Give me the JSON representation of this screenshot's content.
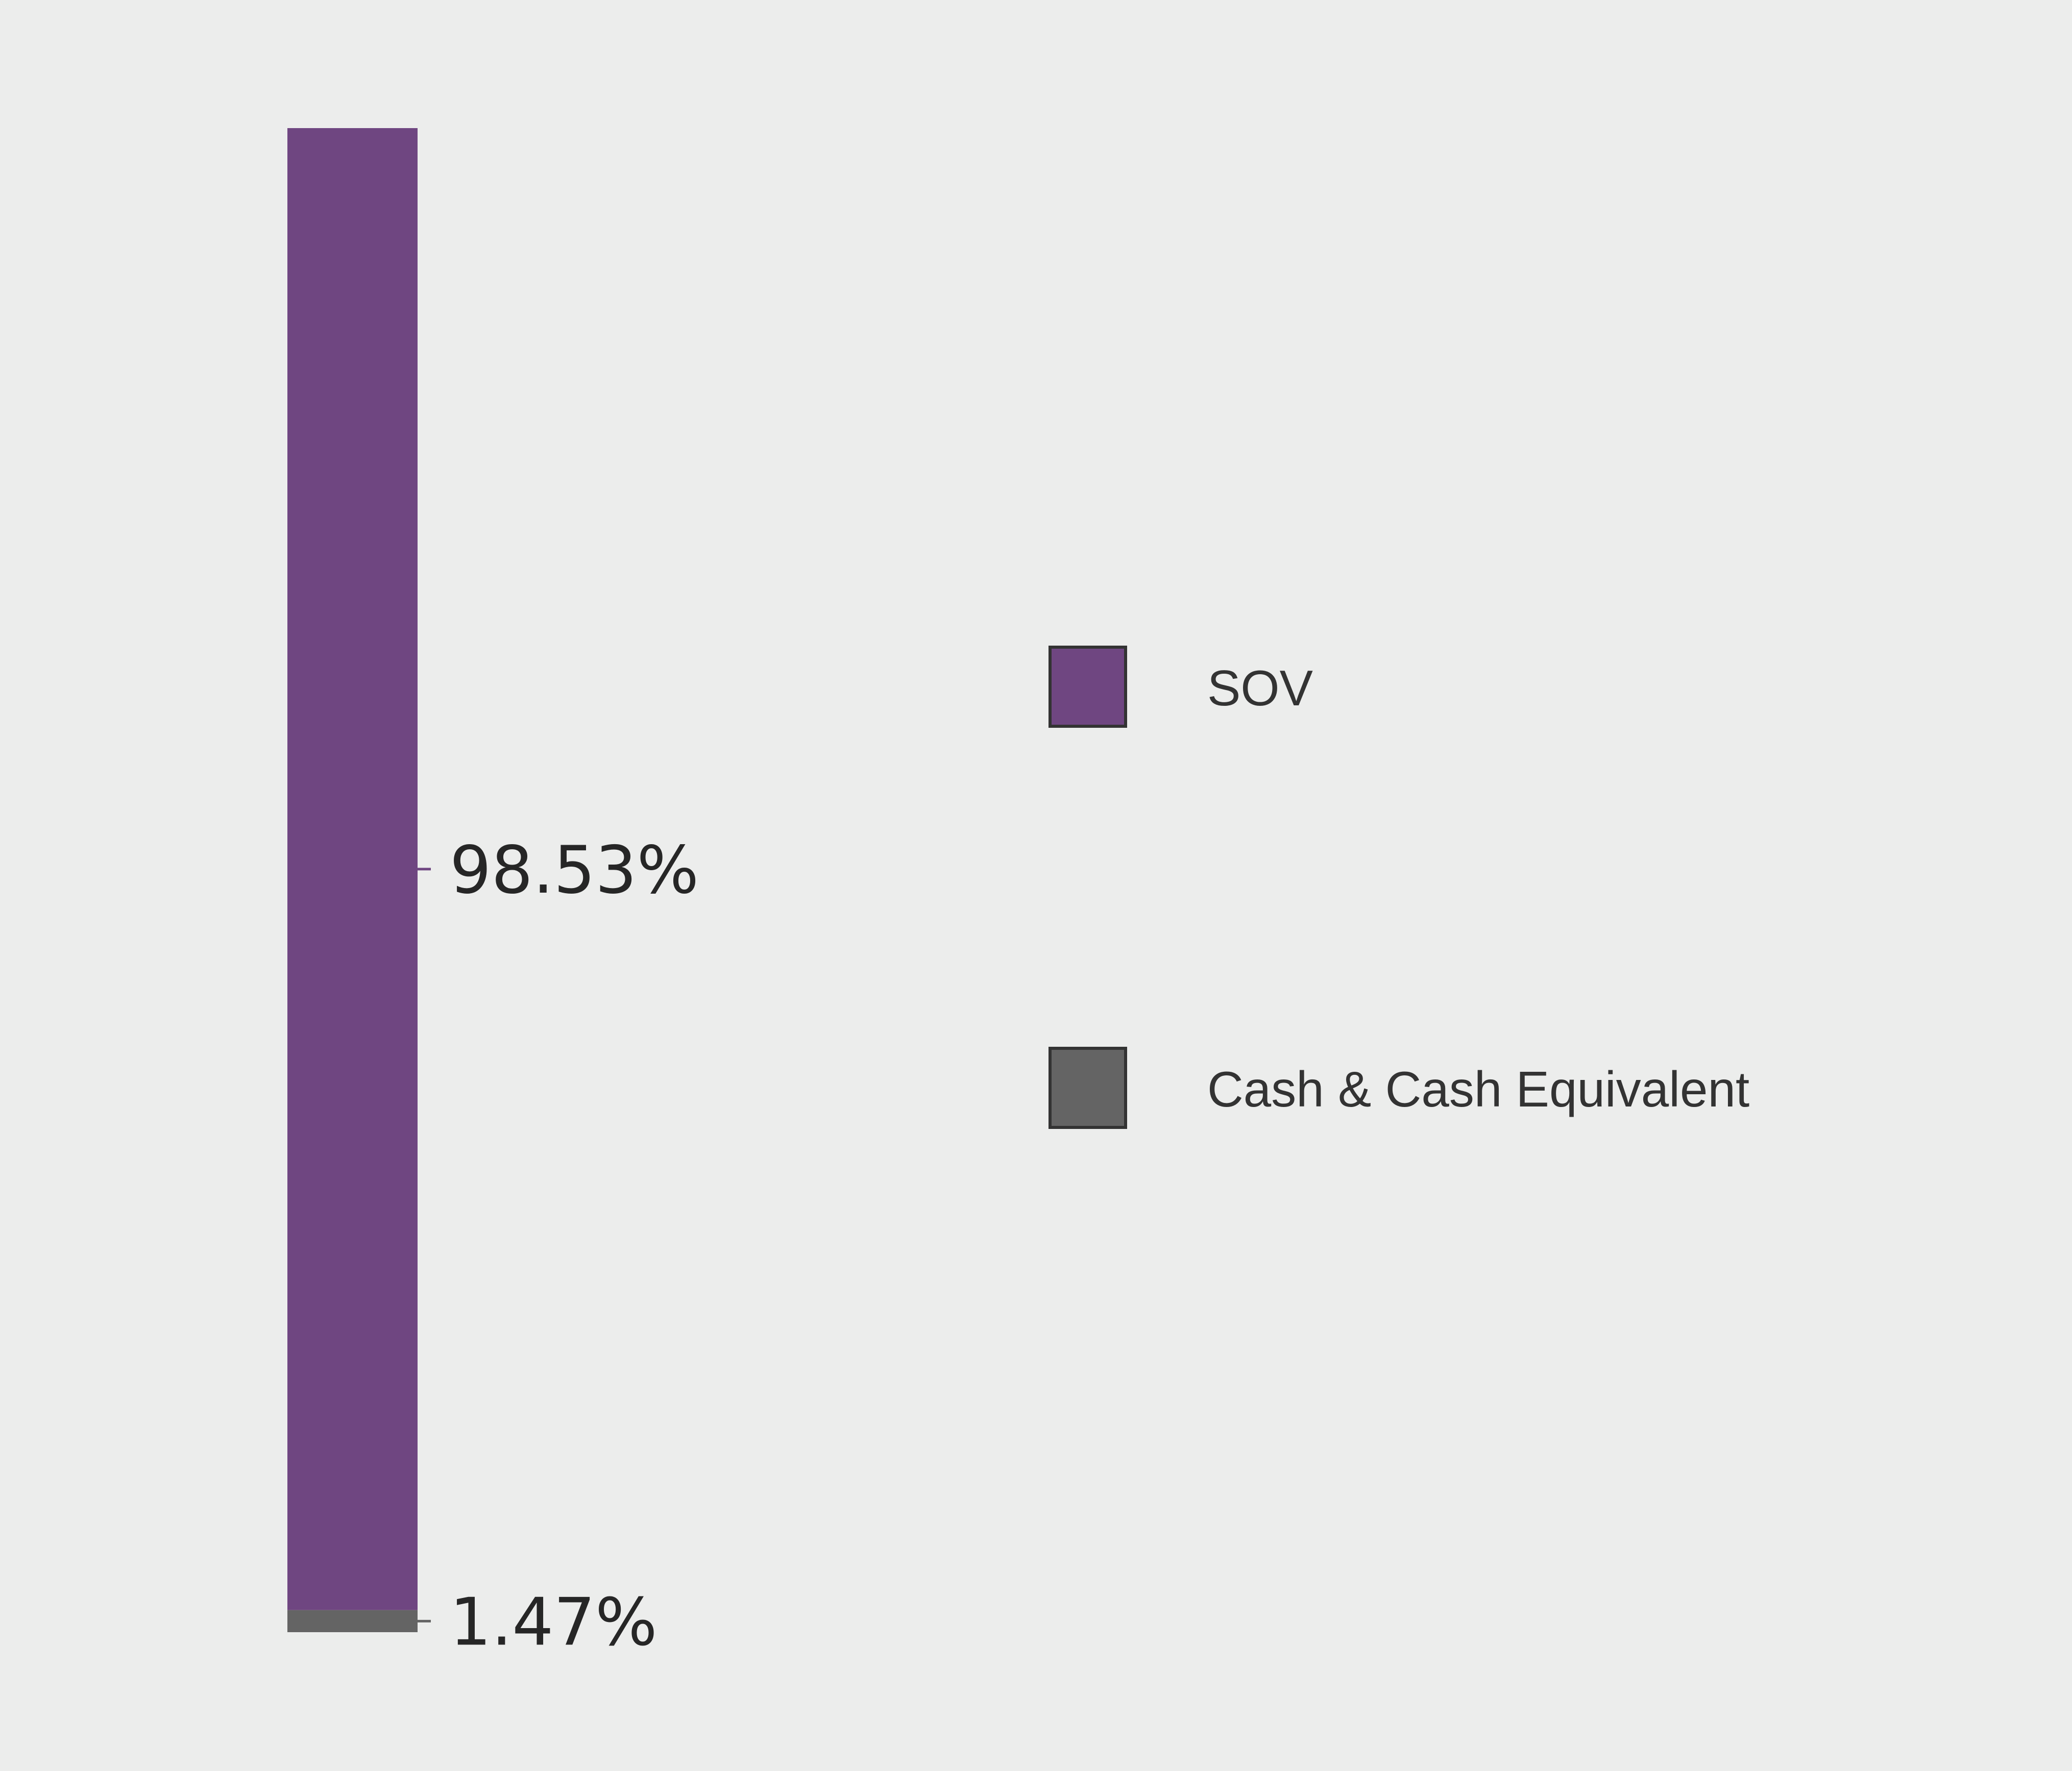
{
  "chart_data": {
    "type": "bar",
    "stacked": true,
    "orientation": "vertical",
    "categories": [
      ""
    ],
    "series": [
      {
        "name": "SOV",
        "values": [
          98.53
        ],
        "label": "98.53%",
        "color": "#6f4681"
      },
      {
        "name": "Cash & Cash Equivalent",
        "values": [
          1.47
        ],
        "label": "1.47%",
        "color": "#646464"
      }
    ],
    "ylim": [
      0,
      100
    ],
    "grid": false,
    "axes_visible": false,
    "legend": {
      "placement": "right",
      "entries": [
        "SOV",
        "Cash & Cash Equivalent"
      ]
    },
    "background": "#ecedec"
  }
}
